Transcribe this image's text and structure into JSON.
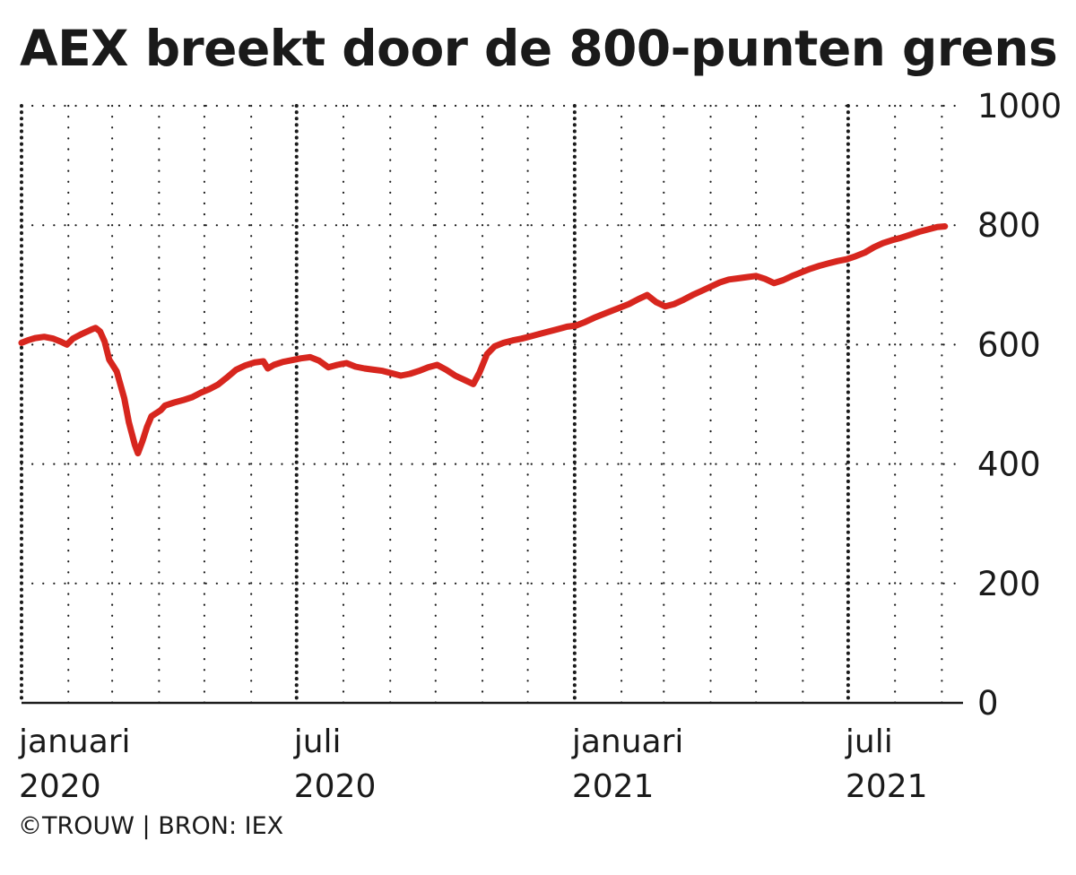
{
  "title": "AEX breekt door de 800-punten grens",
  "source": "©TROUW | BRON: IEX",
  "colors": {
    "line": "#d7261e",
    "grid": "#1a1a1a",
    "text": "#1a1a1a"
  },
  "chart_data": {
    "type": "line",
    "title": "AEX breekt door de 800-punten grens",
    "xlabel": "",
    "ylabel": "",
    "ylim": [
      0,
      1000
    ],
    "yticks": [
      0,
      200,
      400,
      600,
      800,
      1000
    ],
    "xlim": [
      "2020-01-01",
      "2021-09-15"
    ],
    "grid": true,
    "legend": "none",
    "x_axis_labels": [
      {
        "date": "2020-01-01",
        "month": "januari",
        "year": "2020"
      },
      {
        "date": "2020-07-01",
        "month": "juli",
        "year": "2020"
      },
      {
        "date": "2021-01-01",
        "month": "januari",
        "year": "2021"
      },
      {
        "date": "2021-07-01",
        "month": "juli",
        "year": "2021"
      }
    ],
    "series": [
      {
        "x": [
          "2020-01-01",
          "2020-01-05",
          "2020-01-10",
          "2020-01-16",
          "2020-01-22",
          "2020-01-27",
          "2020-01-31",
          "2020-02-04",
          "2020-02-10",
          "2020-02-16",
          "2020-02-19",
          "2020-02-22",
          "2020-02-25",
          "2020-02-28",
          "2020-03-04",
          "2020-03-09",
          "2020-03-12",
          "2020-03-16",
          "2020-03-18",
          "2020-03-21",
          "2020-03-24",
          "2020-03-27",
          "2020-04-02",
          "2020-04-05",
          "2020-04-11",
          "2020-04-17",
          "2020-04-23",
          "2020-04-29",
          "2020-05-04",
          "2020-05-10",
          "2020-05-16",
          "2020-05-22",
          "2020-05-28",
          "2020-06-03",
          "2020-06-09",
          "2020-06-12",
          "2020-06-16",
          "2020-06-22",
          "2020-06-28",
          "2020-07-04",
          "2020-07-10",
          "2020-07-16",
          "2020-07-22",
          "2020-07-28",
          "2020-08-03",
          "2020-08-09",
          "2020-08-15",
          "2020-08-21",
          "2020-08-27",
          "2020-09-02",
          "2020-09-08",
          "2020-09-14",
          "2020-09-20",
          "2020-09-26",
          "2020-10-02",
          "2020-10-08",
          "2020-10-14",
          "2020-10-20",
          "2020-10-26",
          "2020-10-30",
          "2020-11-04",
          "2020-11-09",
          "2020-11-15",
          "2020-11-21",
          "2020-11-27",
          "2020-12-03",
          "2020-12-09",
          "2020-12-15",
          "2020-12-21",
          "2020-12-27",
          "2021-01-02",
          "2021-01-08",
          "2021-01-14",
          "2021-01-20",
          "2021-01-26",
          "2021-01-31",
          "2021-02-06",
          "2021-02-12",
          "2021-02-18",
          "2021-02-24",
          "2021-03-02",
          "2021-03-08",
          "2021-03-14",
          "2021-03-20",
          "2021-03-26",
          "2021-04-01",
          "2021-04-07",
          "2021-04-13",
          "2021-04-19",
          "2021-04-25",
          "2021-05-01",
          "2021-05-07",
          "2021-05-13",
          "2021-05-19",
          "2021-05-25",
          "2021-05-31",
          "2021-06-06",
          "2021-06-12",
          "2021-06-18",
          "2021-06-24",
          "2021-06-30",
          "2021-07-06",
          "2021-07-12",
          "2021-07-18",
          "2021-07-24",
          "2021-07-30",
          "2021-08-05",
          "2021-08-11",
          "2021-08-17",
          "2021-08-23",
          "2021-08-29",
          "2021-09-03"
        ],
        "values": [
          603,
          607,
          611,
          613,
          610,
          605,
          600,
          610,
          618,
          625,
          628,
          622,
          605,
          575,
          555,
          510,
          470,
          432,
          418,
          438,
          462,
          480,
          490,
          498,
          503,
          507,
          512,
          520,
          525,
          533,
          545,
          558,
          565,
          570,
          572,
          560,
          566,
          571,
          574,
          577,
          579,
          573,
          562,
          566,
          569,
          563,
          560,
          558,
          556,
          552,
          548,
          551,
          556,
          562,
          566,
          558,
          548,
          541,
          534,
          553,
          584,
          597,
          603,
          607,
          610,
          614,
          618,
          622,
          626,
          630,
          632,
          638,
          645,
          651,
          657,
          662,
          668,
          676,
          683,
          671,
          664,
          668,
          675,
          683,
          690,
          697,
          704,
          709,
          711,
          713,
          715,
          710,
          703,
          708,
          715,
          721,
          727,
          732,
          736,
          740,
          743,
          748,
          754,
          763,
          770,
          775,
          779,
          784,
          789,
          793,
          797,
          798
        ]
      }
    ]
  }
}
